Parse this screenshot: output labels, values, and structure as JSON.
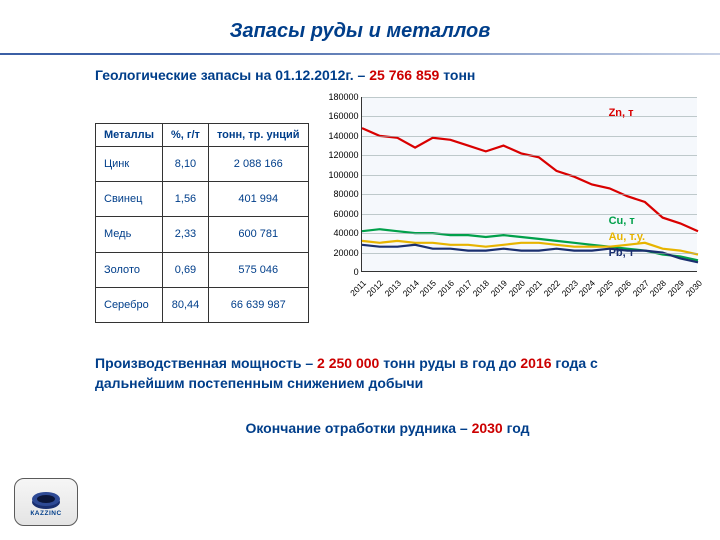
{
  "title": "Запасы руды и металлов",
  "subtitle_prefix": "Геологические запасы на 01.12.2012г. – ",
  "subtitle_hl": "25 766 859",
  "subtitle_suffix": " тонн",
  "table": {
    "headers": [
      "Металлы",
      "%, г/т",
      "тонн, тр. унций"
    ],
    "rows": [
      [
        "Цинк",
        "8,10",
        "2 088 166"
      ],
      [
        "Свинец",
        "1,56",
        "401 994"
      ],
      [
        "Медь",
        "2,33",
        "600 781"
      ],
      [
        "Золото",
        "0,69",
        "575 046"
      ],
      [
        "Серебро",
        "80,44",
        "66 639 987"
      ]
    ]
  },
  "chart": {
    "type": "line",
    "background": "#f5f8fc",
    "grid_color": "#9aa4b2",
    "xlim": [
      2011,
      2030
    ],
    "ylim": [
      0,
      180000
    ],
    "ytick_step": 20000,
    "yticks": [
      "0",
      "20000",
      "40000",
      "60000",
      "80000",
      "100000",
      "120000",
      "140000",
      "160000",
      "180000"
    ],
    "xticks": [
      "2011",
      "2012",
      "2013",
      "2014",
      "2015",
      "2016",
      "2017",
      "2018",
      "2019",
      "2020",
      "2021",
      "2022",
      "2023",
      "2024",
      "2025",
      "2026",
      "2027",
      "2028",
      "2029",
      "2030"
    ],
    "series": [
      {
        "name": "Zn, т",
        "color": "#d90000",
        "label_pos": {
          "x": 248,
          "y": 10
        },
        "values": [
          148000,
          140000,
          138000,
          128000,
          138000,
          136000,
          130000,
          124000,
          130000,
          122000,
          118000,
          104000,
          98000,
          90000,
          86000,
          78000,
          72000,
          56000,
          50000,
          42000
        ]
      },
      {
        "name": "Cu, т",
        "color": "#00a04a",
        "label_pos": {
          "x": 248,
          "y": 118
        },
        "values": [
          42000,
          44000,
          42000,
          40000,
          40000,
          38000,
          38000,
          36000,
          38000,
          36000,
          34000,
          32000,
          30000,
          28000,
          26000,
          24000,
          22000,
          18000,
          16000,
          12000
        ]
      },
      {
        "name": "Au, т.у.",
        "color": "#e7b400",
        "label_pos": {
          "x": 248,
          "y": 134
        },
        "values": [
          32000,
          30000,
          32000,
          30000,
          30000,
          28000,
          28000,
          26000,
          28000,
          30000,
          30000,
          28000,
          26000,
          26000,
          26000,
          28000,
          30000,
          24000,
          22000,
          18000
        ]
      },
      {
        "name": "Pb, т",
        "color": "#1a2f6f",
        "label_pos": {
          "x": 248,
          "y": 150
        },
        "values": [
          28000,
          26000,
          26000,
          28000,
          24000,
          24000,
          22000,
          22000,
          24000,
          22000,
          22000,
          24000,
          22000,
          22000,
          24000,
          22000,
          22000,
          20000,
          14000,
          10000
        ]
      }
    ],
    "line_width": 2.2,
    "label_fontsize": 11
  },
  "bottom1_segments": [
    {
      "t": "Производственная мощность – ",
      "hl": false
    },
    {
      "t": "2 250 000",
      "hl": true
    },
    {
      "t": " тонн руды в год до ",
      "hl": false
    },
    {
      "t": "2016",
      "hl": true
    },
    {
      "t": " года с дальнейшим постепенным снижением добычи",
      "hl": false
    }
  ],
  "bottom2_segments": [
    {
      "t": "Окончание отработки рудника – ",
      "hl": false
    },
    {
      "t": "2030",
      "hl": true
    },
    {
      "t": " год",
      "hl": false
    }
  ],
  "logo_text": "КАZZINC"
}
